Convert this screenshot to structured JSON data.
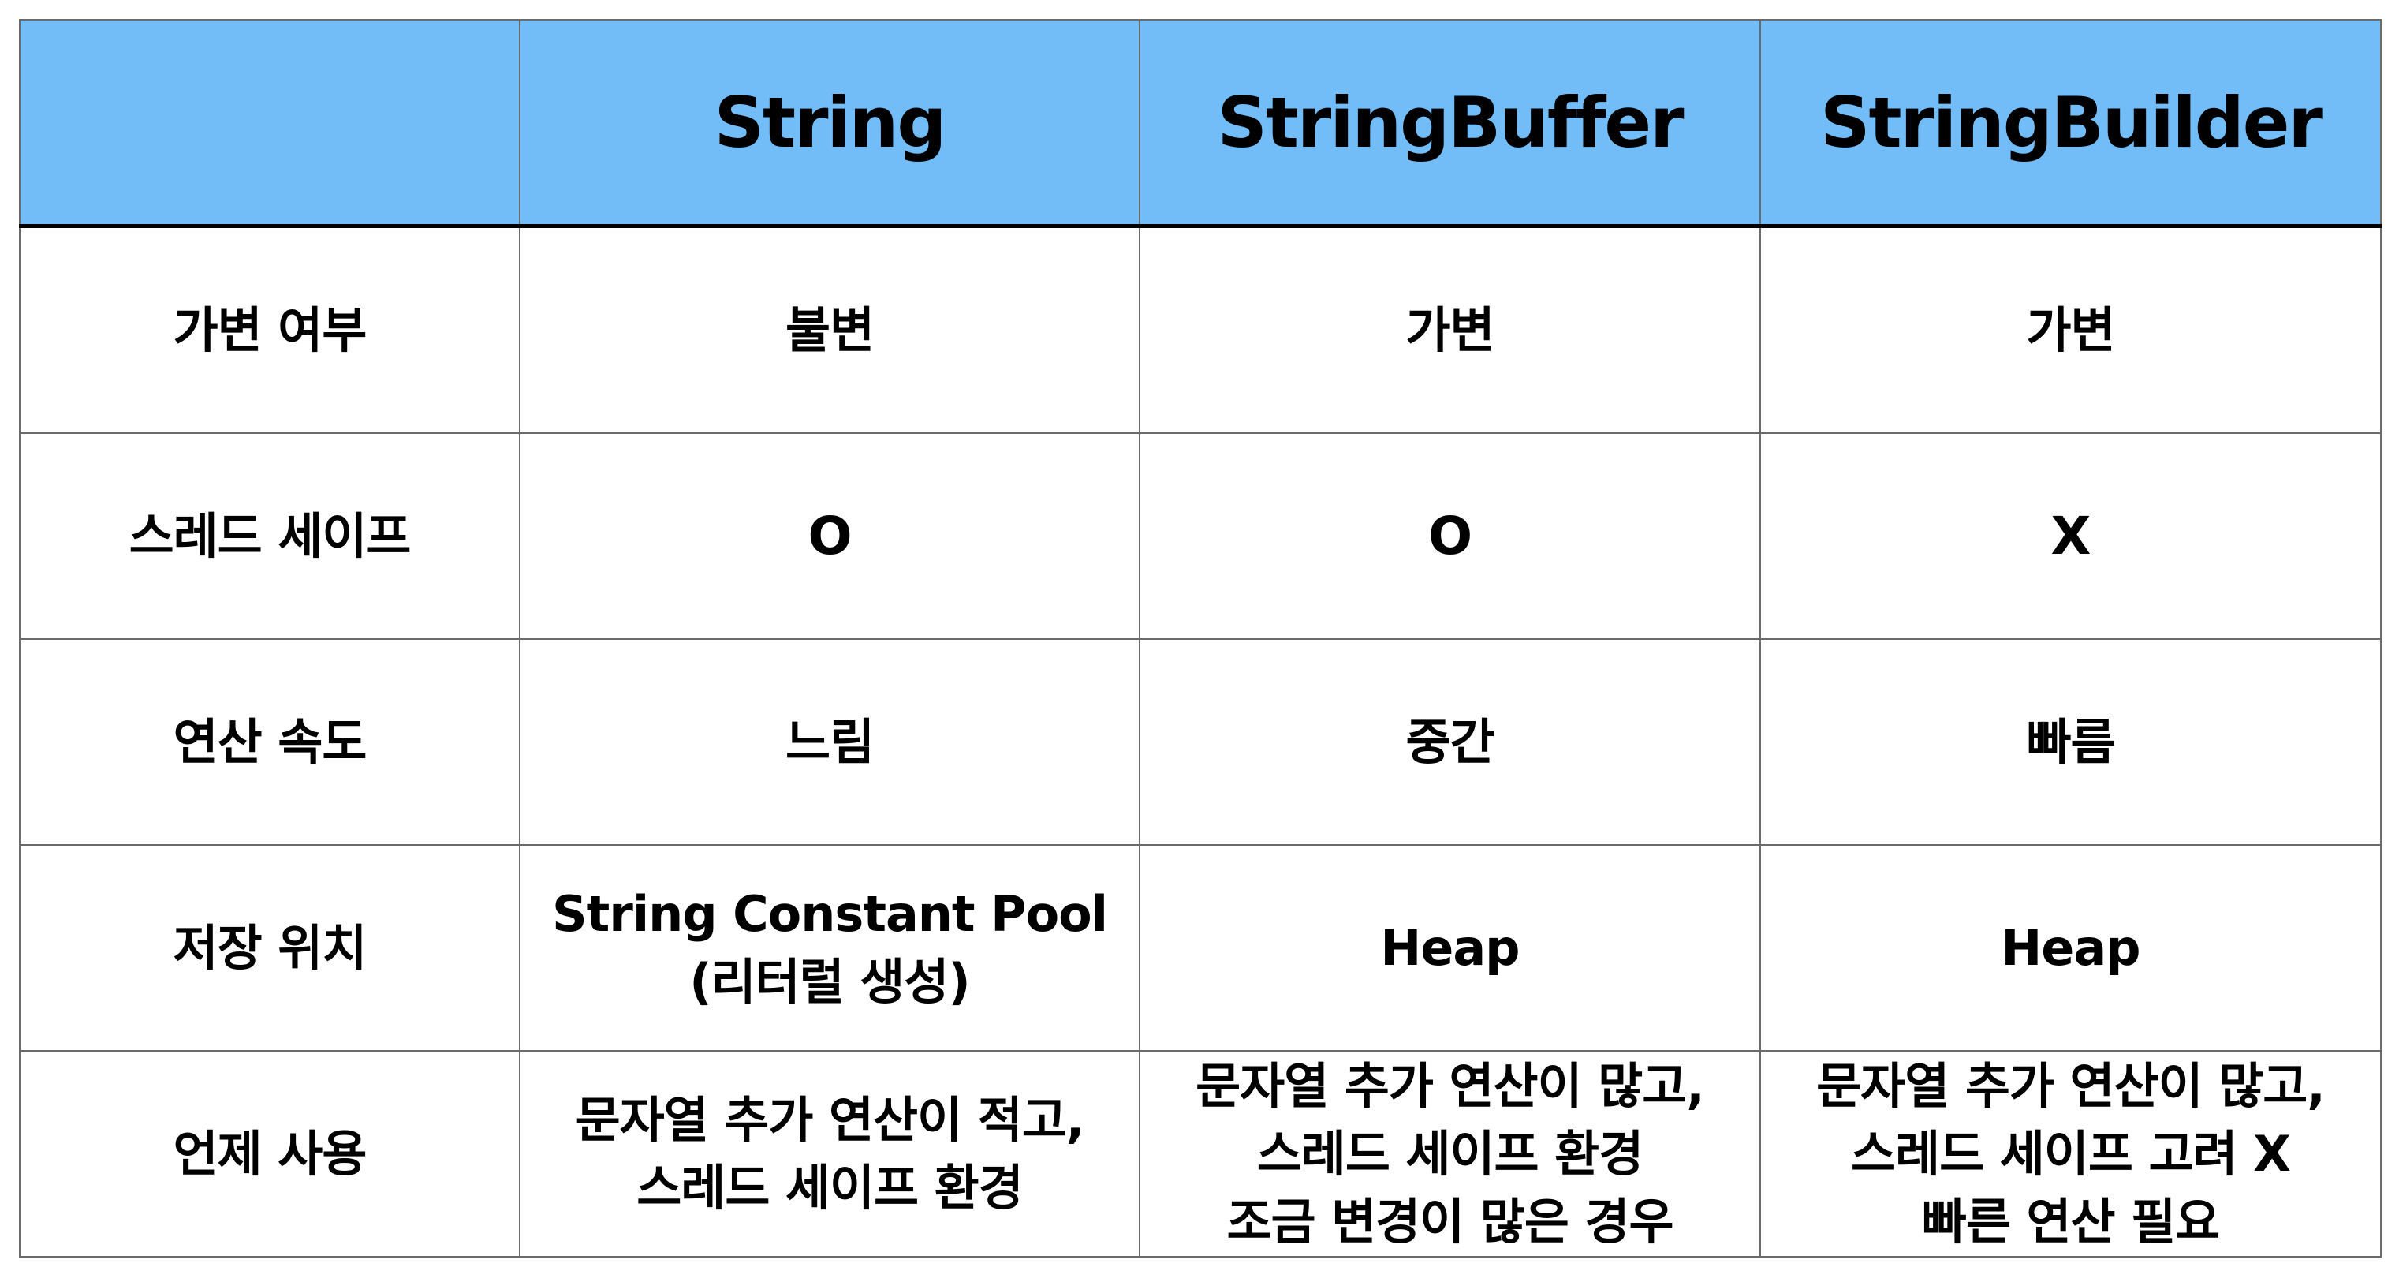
{
  "table": {
    "header": {
      "corner": "",
      "columns": [
        "String",
        "StringBuffer",
        "StringBuilder"
      ]
    },
    "rows": [
      {
        "label": "가변 여부",
        "cells": [
          [
            "불변"
          ],
          [
            "가변"
          ],
          [
            "가변"
          ]
        ]
      },
      {
        "label": "스레드 세이프",
        "cells": [
          [
            "O"
          ],
          [
            "O"
          ],
          [
            "X"
          ]
        ]
      },
      {
        "label": "연산 속도",
        "cells": [
          [
            "느림"
          ],
          [
            "중간"
          ],
          [
            "빠름"
          ]
        ]
      },
      {
        "label": "저장 위치",
        "cells": [
          [
            "String Constant Pool",
            "(리터럴 생성)"
          ],
          [
            "Heap"
          ],
          [
            "Heap"
          ]
        ]
      },
      {
        "label": "언제 사용",
        "cells": [
          [
            "문자열 추가 연산이 적고,",
            "스레드 세이프 환경"
          ],
          [
            "문자열 추가 연산이 많고,",
            "스레드 세이프 환경",
            "조금 변경이 많은 경우"
          ],
          [
            "문자열 추가 연산이 많고,",
            "스레드 세이프 고려 X",
            "빠른 연산 필요"
          ]
        ]
      }
    ]
  },
  "colors": {
    "header_background": "#72bdf8",
    "border": "#6b6b6b",
    "text": "#000000",
    "header_separator": "#000000"
  }
}
